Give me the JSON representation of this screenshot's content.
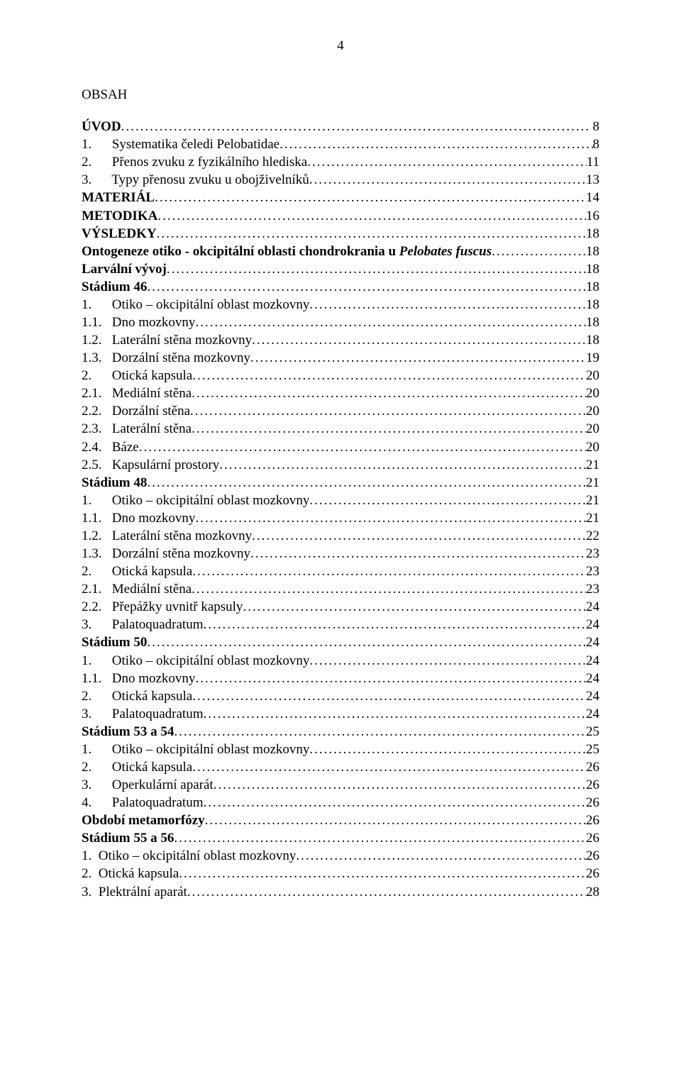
{
  "page_number": "4",
  "heading": "OBSAH",
  "entries": [
    {
      "text": "ÚVOD",
      "page": " 8",
      "bold": true,
      "indent": 0
    },
    {
      "text": "1.      Systematika čeledi Pelobatidae",
      "page": "8",
      "bold": false,
      "indent": 0
    },
    {
      "text": "2.      Přenos zvuku z fyzikálního hlediska",
      "page": "11",
      "bold": false,
      "indent": 0
    },
    {
      "text": "3.      Typy přenosu zvuku u obojživelníků",
      "page": "13",
      "bold": false,
      "indent": 0
    },
    {
      "text": "MATERIÁL",
      "page": "14",
      "bold": true,
      "indent": 0
    },
    {
      "text": "METODIKA",
      "page": "16",
      "bold": true,
      "indent": 0
    },
    {
      "text": "VÝSLEDKY",
      "page": "18",
      "bold": true,
      "indent": 0
    },
    {
      "text_html": "<b>Ontogeneze otiko - okcipitální oblasti chondrokrania u </b><i><b>Pelobates fuscus</b></i>",
      "page": "18",
      "bold": false,
      "indent": 0
    },
    {
      "text": "Larvální vývoj",
      "page": "18",
      "bold": true,
      "indent": 0
    },
    {
      "text": "Stádium 46",
      "page": "18",
      "bold": true,
      "indent": 0
    },
    {
      "text": "1.      Otiko – okcipitální oblast mozkovny",
      "page": "18",
      "bold": false,
      "indent": 0
    },
    {
      "text": "1.1.   Dno mozkovny",
      "page": "18",
      "bold": false,
      "indent": 0
    },
    {
      "text": "1.2.   Laterální stěna mozkovny",
      "page": "18",
      "bold": false,
      "indent": 0
    },
    {
      "text": "1.3.   Dorzální stěna mozkovny",
      "page": "19",
      "bold": false,
      "indent": 0
    },
    {
      "text": "2.      Otická kapsula",
      "page": "20",
      "bold": false,
      "indent": 0
    },
    {
      "text": "2.1.   Mediální stěna",
      "page": "20",
      "bold": false,
      "indent": 0
    },
    {
      "text": "2.2.   Dorzální stěna",
      "page": "20",
      "bold": false,
      "indent": 0
    },
    {
      "text": "2.3.   Laterální stěna",
      "page": "20",
      "bold": false,
      "indent": 0
    },
    {
      "text": "2.4.   Báze",
      "page": "20",
      "bold": false,
      "indent": 0
    },
    {
      "text": "2.5.   Kapsulární prostory",
      "page": "21",
      "bold": false,
      "indent": 0
    },
    {
      "text": "Stádium 48",
      "page": "21",
      "bold": true,
      "indent": 0
    },
    {
      "text": "1.      Otiko – okcipitální oblast mozkovny",
      "page": "21",
      "bold": false,
      "indent": 0
    },
    {
      "text": "1.1.   Dno mozkovny",
      "page": "21",
      "bold": false,
      "indent": 0
    },
    {
      "text": "1.2.   Laterální stěna mozkovny",
      "page": "22",
      "bold": false,
      "indent": 0
    },
    {
      "text": "1.3.   Dorzální stěna mozkovny",
      "page": "23",
      "bold": false,
      "indent": 0
    },
    {
      "text": "2.      Otická kapsula",
      "page": "23",
      "bold": false,
      "indent": 0
    },
    {
      "text": "2.1.   Mediální stěna",
      "page": "23",
      "bold": false,
      "indent": 0
    },
    {
      "text": "2.2.   Přepážky uvnitř kapsuly",
      "page": "24",
      "bold": false,
      "indent": 0
    },
    {
      "text": "3.      Palatoquadratum",
      "page": "24",
      "bold": false,
      "indent": 0
    },
    {
      "text": "Stádium 50",
      "page": "24",
      "bold": true,
      "indent": 0
    },
    {
      "text": "1.      Otiko – okcipitální oblast mozkovny",
      "page": "24",
      "bold": false,
      "indent": 0
    },
    {
      "text": "1.1.   Dno mozkovny",
      "page": "24",
      "bold": false,
      "indent": 0
    },
    {
      "text": "2.      Otická kapsula",
      "page": "24",
      "bold": false,
      "indent": 0
    },
    {
      "text": "3.      Palatoquadratum",
      "page": "24",
      "bold": false,
      "indent": 0
    },
    {
      "text": "Stádium 53 a 54",
      "page": "25",
      "bold": true,
      "indent": 0
    },
    {
      "text": "1.      Otiko – okcipitální oblast mozkovny",
      "page": "25",
      "bold": false,
      "indent": 0
    },
    {
      "text": "2.      Otická kapsula",
      "page": "26",
      "bold": false,
      "indent": 0
    },
    {
      "text": "3.      Operkulární aparát",
      "page": "26",
      "bold": false,
      "indent": 0
    },
    {
      "text": "4.      Palatoquadratum",
      "page": "26",
      "bold": false,
      "indent": 0
    },
    {
      "text": "Období metamorfózy",
      "page": "26",
      "bold": true,
      "indent": 0
    },
    {
      "text": "Stádium 55 a 56",
      "page": "26",
      "bold": true,
      "indent": 0
    },
    {
      "text": "1.  Otiko – okcipitální oblast mozkovny",
      "page": "26",
      "bold": false,
      "indent": 0
    },
    {
      "text": "2.  Otická kapsula",
      "page": "26",
      "bold": false,
      "indent": 0
    },
    {
      "text": "3.  Plektrální aparát",
      "page": "28",
      "bold": false,
      "indent": 0
    }
  ]
}
